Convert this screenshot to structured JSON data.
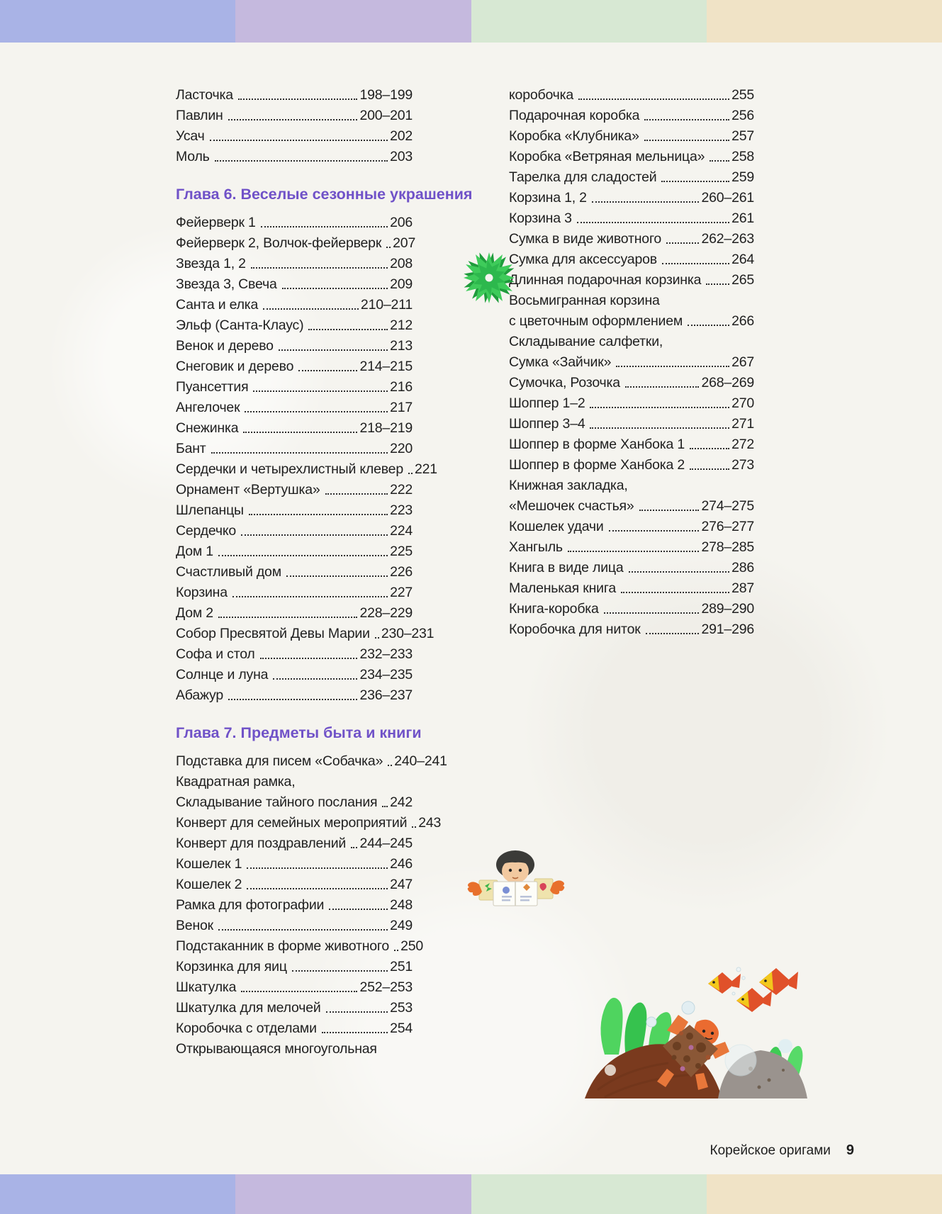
{
  "page": {
    "footer_label": "Корейское оригами",
    "footer_page_number": "9"
  },
  "colors": {
    "bar_segments": [
      "#a9b3e6",
      "#c5b9de",
      "#d7e8d3",
      "#f0e3c6"
    ],
    "chapter_heading": "#7052c8",
    "body_text": "#1f1f1f",
    "page_background": "#f5f4ef"
  },
  "decorations": {
    "pinwheel": "green-origami-pinwheel",
    "doll": "paper-doll-with-open-book",
    "scene": "underwater-origami-scene-turtle-fish-rocks"
  },
  "toc": {
    "left_column": [
      {
        "heading": "",
        "entries": [
          {
            "title": "Ласточка",
            "pages": "198–199"
          },
          {
            "title": "Павлин",
            "pages": "200–201"
          },
          {
            "title": "Усач",
            "pages": "202"
          },
          {
            "title": "Моль",
            "pages": "203"
          }
        ]
      },
      {
        "heading": "Глава 6. Веселые сезонные украшения",
        "entries": [
          {
            "title": "Фейерверк 1",
            "pages": "206"
          },
          {
            "title": "Фейерверк 2, Волчок-фейерверк",
            "pages": "207"
          },
          {
            "title": "Звезда 1, 2",
            "pages": "208"
          },
          {
            "title": "Звезда 3, Свеча",
            "pages": "209"
          },
          {
            "title": "Санта и елка",
            "pages": "210–211"
          },
          {
            "title": "Эльф (Санта-Клаус)",
            "pages": "212"
          },
          {
            "title": "Венок и дерево",
            "pages": "213"
          },
          {
            "title": "Снеговик и дерево",
            "pages": "214–215"
          },
          {
            "title": "Пуансеттия",
            "pages": "216"
          },
          {
            "title": "Ангелочек",
            "pages": "217"
          },
          {
            "title": "Снежинка",
            "pages": "218–219"
          },
          {
            "title": "Бант",
            "pages": "220"
          },
          {
            "title": "Сердечки и четырехлистный клевер",
            "pages": "221"
          },
          {
            "title": "Орнамент «Вертушка»",
            "pages": "222"
          },
          {
            "title": "Шлепанцы",
            "pages": "223"
          },
          {
            "title": "Сердечко",
            "pages": "224"
          },
          {
            "title": "Дом 1",
            "pages": "225"
          },
          {
            "title": "Счастливый дом",
            "pages": "226"
          },
          {
            "title": "Корзина",
            "pages": "227"
          },
          {
            "title": "Дом 2",
            "pages": "228–229"
          },
          {
            "title": "Собор Пресвятой Девы Марии",
            "pages": "230–231"
          },
          {
            "title": "Софа и стол",
            "pages": "232–233"
          },
          {
            "title": "Солнце и луна",
            "pages": "234–235"
          },
          {
            "title": "Абажур",
            "pages": "236–237"
          }
        ]
      },
      {
        "heading": "Глава 7. Предметы быта и книги",
        "entries": [
          {
            "title": "Подставка для писем «Собачка»",
            "pages": "240–241"
          },
          {
            "title": "Квадратная рамка,",
            "pages": ""
          },
          {
            "title": "Складывание тайного послания",
            "pages": "242"
          },
          {
            "title": "Конверт для семейных мероприятий",
            "pages": "243"
          },
          {
            "title": "Конверт для поздравлений",
            "pages": "244–245"
          },
          {
            "title": "Кошелек 1",
            "pages": "246"
          },
          {
            "title": "Кошелек 2",
            "pages": "247"
          },
          {
            "title": "Рамка для фотографии",
            "pages": "248"
          },
          {
            "title": "Венок",
            "pages": "249"
          },
          {
            "title": "Подстаканник в форме животного",
            "pages": "250"
          },
          {
            "title": "Корзинка для яиц",
            "pages": "251"
          },
          {
            "title": "Шкатулка",
            "pages": "252–253"
          },
          {
            "title": "Шкатулка для мелочей",
            "pages": "253"
          },
          {
            "title": "Коробочка с отделами",
            "pages": "254"
          },
          {
            "title": "Открывающаяся многоугольная",
            "pages": ""
          }
        ]
      }
    ],
    "right_column": [
      {
        "heading": "",
        "entries": [
          {
            "title": "коробочка",
            "pages": "255"
          },
          {
            "title": "Подарочная коробка",
            "pages": "256"
          },
          {
            "title": "Коробка «Клубника»",
            "pages": "257"
          },
          {
            "title": "Коробка «Ветряная мельница»",
            "pages": "258"
          },
          {
            "title": "Тарелка для сладостей",
            "pages": "259"
          },
          {
            "title": "Корзина 1, 2",
            "pages": "260–261"
          },
          {
            "title": "Корзина 3",
            "pages": "261"
          },
          {
            "title": "Сумка в виде животного",
            "pages": "262–263"
          },
          {
            "title": "Сумка для аксессуаров",
            "pages": "264"
          },
          {
            "title": "Длинная подарочная корзинка",
            "pages": "265"
          },
          {
            "title": "Восьмигранная корзина",
            "pages": ""
          },
          {
            "title": "с цветочным оформлением",
            "pages": "266"
          },
          {
            "title": "Складывание салфетки,",
            "pages": ""
          },
          {
            "title": "Сумка «Зайчик»",
            "pages": "267"
          },
          {
            "title": "Сумочка, Розочка",
            "pages": "268–269"
          },
          {
            "title": "Шоппер 1–2",
            "pages": "270"
          },
          {
            "title": "Шоппер 3–4",
            "pages": "271"
          },
          {
            "title": "Шоппер в форме Ханбока 1",
            "pages": "272"
          },
          {
            "title": "Шоппер в форме Ханбока 2",
            "pages": "273"
          },
          {
            "title": "Книжная закладка,",
            "pages": ""
          },
          {
            "title": "«Мешочек счастья»",
            "pages": "274–275"
          },
          {
            "title": "Кошелек удачи",
            "pages": "276–277"
          },
          {
            "title": "Хангыль",
            "pages": "278–285"
          },
          {
            "title": "Книга в виде лица",
            "pages": "286"
          },
          {
            "title": "Маленькая книга",
            "pages": "287"
          },
          {
            "title": "Книга-коробка",
            "pages": "289–290"
          },
          {
            "title": "Коробочка для ниток",
            "pages": "291–296"
          }
        ]
      }
    ]
  }
}
